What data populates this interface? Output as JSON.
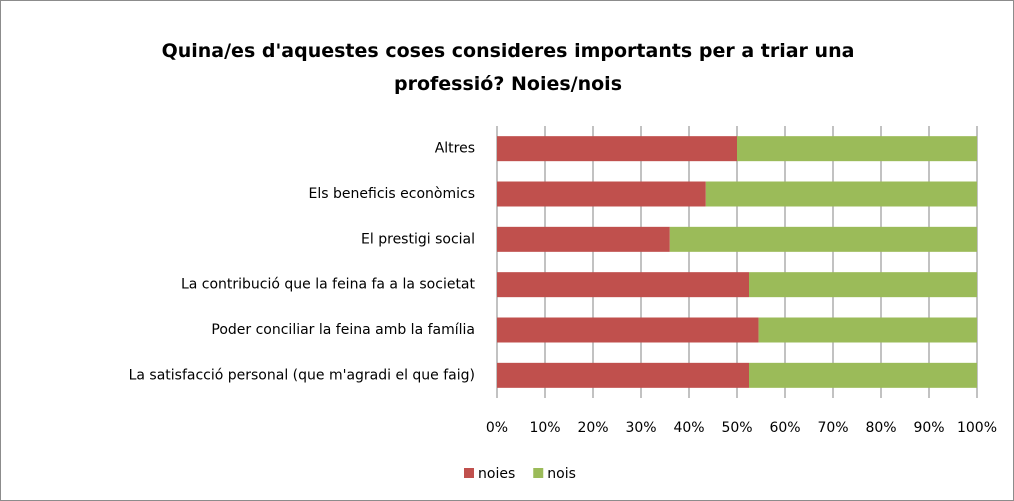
{
  "chart_data": {
    "type": "stacked_bar_horizontal",
    "title": "Quina/es d'aquestes coses consideres importants per a triar una professió? Noies/nois",
    "categories": [
      "Altres",
      "Els beneficis econòmics",
      "El prestigi social",
      "La contribució que la feina fa a la societat",
      "Poder conciliar la feina amb la família",
      "La satisfacció personal (que m'agradi el que faig)"
    ],
    "series": [
      {
        "name": "noies",
        "color": "#c0504d",
        "values": [
          50,
          43.5,
          36,
          52.5,
          54.5,
          52.5
        ]
      },
      {
        "name": "nois",
        "color": "#9bbb59",
        "values": [
          50,
          56.5,
          64,
          47.5,
          45.5,
          47.5
        ]
      }
    ],
    "xlim": [
      0,
      100
    ],
    "xticks": [
      {
        "value": 0,
        "label": "0%"
      },
      {
        "value": 10,
        "label": "10%"
      },
      {
        "value": 20,
        "label": "20%"
      },
      {
        "value": 30,
        "label": "30%"
      },
      {
        "value": 40,
        "label": "40%"
      },
      {
        "value": 50,
        "label": "50%"
      },
      {
        "value": 60,
        "label": "60%"
      },
      {
        "value": 70,
        "label": "70%"
      },
      {
        "value": 80,
        "label": "80%"
      },
      {
        "value": 90,
        "label": "90%"
      },
      {
        "value": 100,
        "label": "100%"
      }
    ],
    "grid": true,
    "legend": "bottom"
  }
}
